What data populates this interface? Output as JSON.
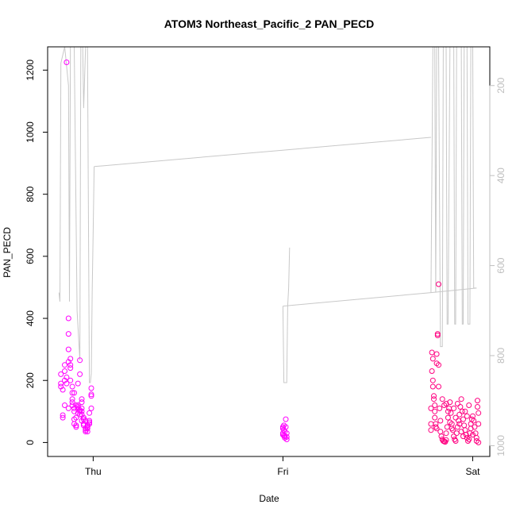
{
  "chart_data": {
    "type": "scatter",
    "title": "ATOM3 Northeast_Pacific_2 PAN_PECD",
    "xlabel": "Date",
    "ylabel": "PAN_PECD",
    "x_ticks": [
      "Thu",
      "Fri",
      "Sat"
    ],
    "ylim": [
      -45,
      1275
    ],
    "y_ticks": [
      0,
      200,
      400,
      600,
      800,
      1000,
      1200
    ],
    "y2_ticks": [
      200,
      400,
      600,
      800,
      1000
    ],
    "y2_reversed": true,
    "y2_lim": [
      1024,
      114
    ],
    "grid": false,
    "legend": "none",
    "colors": {
      "points_magenta": "#ff00ff",
      "points_pink": "#ff0080",
      "altitude_line": "#c8c8c8",
      "axis": "#000000",
      "y2_labels": "#bebebe"
    },
    "series": [
      {
        "kind": "line",
        "axis": "secondary",
        "note": "pressure profile (hPa), x in days relative to Thu midnight",
        "points": [
          [
            -0.18,
            660
          ],
          [
            -0.175,
            680
          ],
          [
            -0.17,
            210
          ],
          [
            -0.16,
            120
          ],
          [
            -0.15,
            110
          ],
          [
            -0.13,
            200
          ],
          [
            -0.12,
            680
          ],
          [
            -0.115,
            120
          ],
          [
            -0.1,
            130
          ],
          [
            -0.085,
            700
          ],
          [
            -0.07,
            810
          ],
          [
            -0.065,
            870
          ],
          [
            -0.05,
            400
          ],
          [
            -0.04,
            120
          ],
          [
            -0.03,
            130
          ],
          [
            -0.02,
            120
          ],
          [
            -0.01,
            150
          ],
          [
            0.0,
            200
          ],
          [
            0.02,
            150
          ],
          [
            0.035,
            200
          ],
          [
            -0.01,
            330
          ],
          [
            -0.005,
            520
          ],
          [
            0.005,
            250
          ],
          [
            0.02,
            300
          ],
          [
            0.03,
            340
          ],
          [
            0.04,
            300
          ],
          [
            0.05,
            250
          ],
          [
            0.06,
            330
          ],
          [
            0.07,
            450
          ],
          [
            0.09,
            650
          ],
          [
            0.11,
            840
          ],
          [
            0.12,
            860
          ],
          [
            0.125,
            870
          ],
          [
            -0.04,
            850
          ],
          [
            -0.03,
            860
          ],
          [
            -0.035,
            860
          ]
        ]
      },
      {
        "kind": "line",
        "axis": "secondary",
        "note": "pressure trace from Thu to Fri (transit leg)",
        "points": [
          [
            -0.03,
            860
          ],
          [
            -0.02,
            860
          ],
          [
            -0.015,
            645
          ],
          [
            -0.01,
            380
          ],
          [
            -0.005,
            375
          ],
          [
            1.8,
            315
          ],
          [
            1.82,
            316
          ]
        ]
      },
      {
        "kind": "line",
        "axis": "secondary",
        "note": "Fri segment",
        "points": [
          [
            0.0,
            690
          ],
          [
            0.01,
            860
          ],
          [
            0.02,
            870
          ],
          [
            0.03,
            860
          ],
          [
            0.04,
            690
          ],
          [
            0.045,
            650
          ],
          [
            0.05,
            560
          ]
        ]
      },
      {
        "kind": "line",
        "axis": "secondary",
        "note": "Fri to Sat transit leg",
        "points": [
          [
            0.0,
            690
          ],
          [
            0.95,
            660
          ],
          [
            1.0,
            660
          ]
        ]
      },
      {
        "name": "",
        "kind": "scatter",
        "axis": "primary",
        "color": "magenta",
        "note": "cluster around Thu (x in days relative to Thu midnight)",
        "points": [
          [
            -0.17,
            180
          ],
          [
            -0.17,
            190
          ],
          [
            -0.16,
            80
          ],
          [
            -0.16,
            88
          ],
          [
            -0.15,
            230
          ],
          [
            -0.15,
            200
          ],
          [
            -0.14,
            210
          ],
          [
            -0.14,
            1225
          ],
          [
            -0.13,
            400
          ],
          [
            -0.13,
            350
          ],
          [
            -0.13,
            300
          ],
          [
            -0.12,
            270
          ],
          [
            -0.12,
            250
          ],
          [
            -0.11,
            180
          ],
          [
            -0.11,
            160
          ],
          [
            -0.11,
            130
          ],
          [
            -0.11,
            120
          ],
          [
            -0.1,
            110
          ],
          [
            -0.1,
            100
          ],
          [
            -0.1,
            75
          ],
          [
            -0.1,
            60
          ],
          [
            -0.09,
            55
          ],
          [
            -0.09,
            50
          ],
          [
            -0.09,
            80
          ],
          [
            -0.08,
            120
          ],
          [
            -0.08,
            115
          ],
          [
            -0.08,
            110
          ],
          [
            -0.07,
            100
          ],
          [
            -0.07,
            90
          ],
          [
            -0.07,
            265
          ],
          [
            -0.07,
            220
          ],
          [
            -0.06,
            140
          ],
          [
            -0.06,
            130
          ],
          [
            -0.06,
            110
          ],
          [
            -0.06,
            90
          ],
          [
            -0.05,
            80
          ],
          [
            -0.05,
            75
          ],
          [
            -0.05,
            60
          ],
          [
            -0.05,
            55
          ],
          [
            -0.04,
            45
          ],
          [
            -0.04,
            40
          ],
          [
            -0.04,
            35
          ],
          [
            -0.03,
            35
          ],
          [
            -0.03,
            45
          ],
          [
            -0.03,
            50
          ],
          [
            -0.02,
            60
          ],
          [
            -0.02,
            65
          ],
          [
            -0.02,
            95
          ],
          [
            -0.01,
            110
          ],
          [
            -0.01,
            150
          ],
          [
            -0.01,
            155
          ],
          [
            -0.01,
            175
          ],
          [
            -0.17,
            220
          ],
          [
            -0.16,
            170
          ],
          [
            -0.15,
            250
          ],
          [
            -0.14,
            190
          ],
          [
            -0.13,
            260
          ],
          [
            -0.12,
            200
          ],
          [
            -0.11,
            140
          ],
          [
            -0.09,
            120
          ],
          [
            -0.08,
            95
          ],
          [
            -0.07,
            105
          ],
          [
            -0.06,
            70
          ],
          [
            -0.04,
            70
          ],
          [
            -0.03,
            55
          ],
          [
            -0.02,
            70
          ],
          [
            -0.15,
            120
          ],
          [
            -0.13,
            110
          ],
          [
            -0.12,
            240
          ],
          [
            -0.1,
            160
          ],
          [
            -0.08,
            190
          ],
          [
            -0.06,
            100
          ]
        ]
      },
      {
        "name": "",
        "kind": "scatter",
        "axis": "primary",
        "color": "magenta",
        "note": "cluster at Fri (x in days relative to Thu midnight)",
        "points": [
          [
            1.0,
            25
          ],
          [
            1.0,
            30
          ],
          [
            1.0,
            45
          ],
          [
            1.0,
            50
          ],
          [
            1.005,
            55
          ],
          [
            1.005,
            40
          ],
          [
            1.01,
            20
          ],
          [
            1.01,
            15
          ],
          [
            1.01,
            35
          ],
          [
            1.015,
            50
          ],
          [
            1.015,
            75
          ],
          [
            1.02,
            30
          ],
          [
            1.02,
            18
          ],
          [
            1.02,
            10
          ],
          [
            1.005,
            22
          ]
        ]
      },
      {
        "name": "",
        "kind": "scatter",
        "axis": "primary",
        "color": "pink",
        "note": "cluster around Sat (x in days relative to Thu midnight)",
        "points": [
          [
            1.78,
            60
          ],
          [
            1.78,
            40
          ],
          [
            1.78,
            110
          ],
          [
            1.785,
            230
          ],
          [
            1.785,
            290
          ],
          [
            1.79,
            270
          ],
          [
            1.79,
            200
          ],
          [
            1.79,
            180
          ],
          [
            1.795,
            150
          ],
          [
            1.795,
            140
          ],
          [
            1.8,
            120
          ],
          [
            1.8,
            100
          ],
          [
            1.8,
            80
          ],
          [
            1.805,
            60
          ],
          [
            1.805,
            50
          ],
          [
            1.81,
            45
          ],
          [
            1.81,
            285
          ],
          [
            1.81,
            255
          ],
          [
            1.815,
            350
          ],
          [
            1.815,
            345
          ],
          [
            1.82,
            510
          ],
          [
            1.82,
            250
          ],
          [
            1.82,
            180
          ],
          [
            1.825,
            110
          ],
          [
            1.83,
            70
          ],
          [
            1.83,
            35
          ],
          [
            1.835,
            20
          ],
          [
            1.84,
            10
          ],
          [
            1.845,
            5
          ],
          [
            1.85,
            3
          ],
          [
            1.855,
            2
          ],
          [
            1.86,
            8
          ],
          [
            1.86,
            30
          ],
          [
            1.865,
            50
          ],
          [
            1.87,
            80
          ],
          [
            1.875,
            110
          ],
          [
            1.88,
            130
          ],
          [
            1.885,
            95
          ],
          [
            1.89,
            60
          ],
          [
            1.895,
            40
          ],
          [
            1.9,
            20
          ],
          [
            1.905,
            10
          ],
          [
            1.91,
            5
          ],
          [
            1.915,
            30
          ],
          [
            1.92,
            50
          ],
          [
            1.925,
            70
          ],
          [
            1.93,
            90
          ],
          [
            1.935,
            115
          ],
          [
            1.94,
            140
          ],
          [
            1.945,
            100
          ],
          [
            1.95,
            75
          ],
          [
            1.955,
            55
          ],
          [
            1.96,
            40
          ],
          [
            1.965,
            25
          ],
          [
            1.97,
            15
          ],
          [
            1.975,
            5
          ],
          [
            1.98,
            10
          ],
          [
            1.985,
            30
          ],
          [
            1.99,
            60
          ],
          [
            1.995,
            75
          ],
          [
            2.0,
            85
          ],
          [
            2.005,
            70
          ],
          [
            2.01,
            50
          ],
          [
            2.015,
            30
          ],
          [
            2.02,
            15
          ],
          [
            2.02,
            5
          ],
          [
            2.025,
            135
          ],
          [
            2.025,
            115
          ],
          [
            2.03,
            95
          ],
          [
            2.03,
            60
          ],
          [
            2.03,
            0
          ],
          [
            1.84,
            140
          ],
          [
            1.85,
            120
          ],
          [
            1.86,
            125
          ],
          [
            1.87,
            100
          ],
          [
            1.88,
            65
          ],
          [
            1.89,
            45
          ],
          [
            1.9,
            110
          ],
          [
            1.91,
            80
          ],
          [
            1.92,
            125
          ],
          [
            1.93,
            60
          ],
          [
            1.94,
            35
          ],
          [
            1.95,
            20
          ],
          [
            1.96,
            100
          ],
          [
            1.97,
            85
          ],
          [
            1.98,
            120
          ],
          [
            1.99,
            45
          ],
          [
            2.0,
            25
          ]
        ]
      }
    ]
  }
}
